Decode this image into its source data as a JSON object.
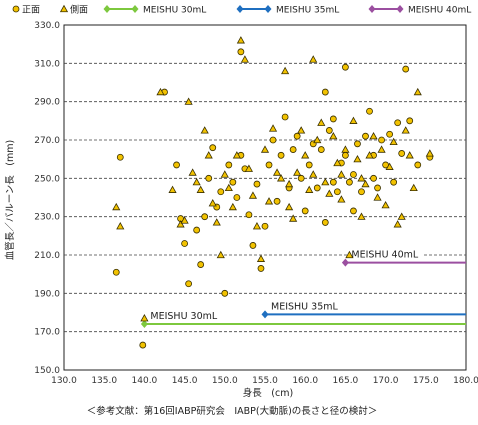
{
  "chart_data": {
    "type": "scatter",
    "xlabel": "身長　(cm)",
    "ylabel": "血管長／バルーン長　(mm)",
    "caption": "＜参考文献：第16回IABP研究会　IABP(大動脈)の長さと径の検討＞",
    "xlim": [
      130.0,
      180.0
    ],
    "ylim": [
      150.0,
      330.0
    ],
    "xticks": [
      "130.0",
      "135.0",
      "140.0",
      "145.0",
      "150.0",
      "155.0",
      "160.0",
      "165.0",
      "170.0",
      "175.0",
      "180.0"
    ],
    "yticks": [
      "150.0",
      "170.0",
      "190.0",
      "210.0",
      "230.0",
      "250.0",
      "270.0",
      "290.0",
      "310.0",
      "330.0"
    ],
    "grid": "horizontal dashed",
    "legend_position": "top",
    "colors": {
      "marker_fill": "#f2c200",
      "marker_stroke": "#3a3000",
      "meishu30": "#7dc83e",
      "meishu35": "#1f6fc0",
      "meishu40": "#9b4fa0"
    },
    "legend": [
      {
        "label": "正面",
        "marker": "circle"
      },
      {
        "label": "側面",
        "marker": "triangle"
      },
      {
        "label": "MEISHU 30mL",
        "marker": "line",
        "color_key": "meishu30"
      },
      {
        "label": "MEISHU 35mL",
        "marker": "line",
        "color_key": "meishu35"
      },
      {
        "label": "MEISHU 40mL",
        "marker": "line",
        "color_key": "meishu40"
      }
    ],
    "reference_lines": [
      {
        "label": "MEISHU 30mL",
        "x_start": 140.0,
        "x_end": 180.0,
        "y": 174,
        "color_key": "meishu30"
      },
      {
        "label": "MEISHU 35mL",
        "x_start": 155.0,
        "x_end": 180.0,
        "y": 179,
        "color_key": "meishu35"
      },
      {
        "label": "MEISHU 40mL",
        "x_start": 165.0,
        "x_end": 180.0,
        "y": 206,
        "color_key": "meishu40"
      }
    ],
    "series": [
      {
        "name": "正面",
        "marker": "circle",
        "points": [
          [
            136.5,
            201
          ],
          [
            137.0,
            261
          ],
          [
            139.8,
            163
          ],
          [
            142.5,
            295
          ],
          [
            144.0,
            257
          ],
          [
            144.5,
            229
          ],
          [
            145.0,
            216
          ],
          [
            145.5,
            195
          ],
          [
            146.5,
            223
          ],
          [
            147.0,
            205
          ],
          [
            147.5,
            230
          ],
          [
            148.0,
            250
          ],
          [
            148.5,
            266
          ],
          [
            149.0,
            235
          ],
          [
            149.5,
            243
          ],
          [
            150.0,
            190
          ],
          [
            150.5,
            257
          ],
          [
            151.0,
            248
          ],
          [
            151.5,
            240
          ],
          [
            152.0,
            262
          ],
          [
            152.0,
            316
          ],
          [
            152.5,
            255
          ],
          [
            153.0,
            231
          ],
          [
            153.5,
            215
          ],
          [
            154.0,
            247
          ],
          [
            154.5,
            203
          ],
          [
            155.0,
            225
          ],
          [
            155.5,
            257
          ],
          [
            156.0,
            270
          ],
          [
            156.5,
            238
          ],
          [
            157.0,
            262
          ],
          [
            157.5,
            282
          ],
          [
            158.0,
            245
          ],
          [
            158.5,
            265
          ],
          [
            159.0,
            272
          ],
          [
            159.5,
            250
          ],
          [
            160.0,
            233
          ],
          [
            160.5,
            257
          ],
          [
            161.0,
            268
          ],
          [
            161.5,
            245
          ],
          [
            162.0,
            265
          ],
          [
            162.5,
            295
          ],
          [
            162.5,
            227
          ],
          [
            163.0,
            275
          ],
          [
            163.5,
            248
          ],
          [
            164.0,
            243
          ],
          [
            164.5,
            258
          ],
          [
            165.0,
            308
          ],
          [
            165.0,
            262
          ],
          [
            165.5,
            248
          ],
          [
            166.0,
            233
          ],
          [
            166.5,
            268
          ],
          [
            167.0,
            243
          ],
          [
            167.5,
            272
          ],
          [
            168.0,
            285
          ],
          [
            168.5,
            262
          ],
          [
            169.0,
            245
          ],
          [
            169.5,
            270
          ],
          [
            170.0,
            257
          ],
          [
            170.5,
            273
          ],
          [
            171.0,
            248
          ],
          [
            171.5,
            279
          ],
          [
            172.0,
            263
          ],
          [
            172.5,
            307
          ],
          [
            173.0,
            280
          ],
          [
            174.0,
            257
          ],
          [
            175.5,
            261
          ],
          [
            163.5,
            281
          ],
          [
            166.0,
            252
          ],
          [
            168.5,
            250
          ]
        ]
      },
      {
        "name": "側面",
        "marker": "triangle",
        "points": [
          [
            136.5,
            235
          ],
          [
            137.0,
            225
          ],
          [
            140.0,
            177
          ],
          [
            142.0,
            295
          ],
          [
            143.5,
            244
          ],
          [
            144.5,
            226
          ],
          [
            145.0,
            228
          ],
          [
            145.5,
            290
          ],
          [
            146.0,
            253
          ],
          [
            146.5,
            248
          ],
          [
            147.0,
            244
          ],
          [
            147.5,
            275
          ],
          [
            148.0,
            262
          ],
          [
            148.5,
            237
          ],
          [
            149.0,
            227
          ],
          [
            149.5,
            210
          ],
          [
            150.0,
            252
          ],
          [
            150.5,
            245
          ],
          [
            151.0,
            235
          ],
          [
            151.5,
            262
          ],
          [
            152.0,
            322
          ],
          [
            152.5,
            312
          ],
          [
            153.0,
            255
          ],
          [
            153.5,
            241
          ],
          [
            154.0,
            225
          ],
          [
            154.5,
            208
          ],
          [
            155.0,
            265
          ],
          [
            155.5,
            238
          ],
          [
            156.0,
            276
          ],
          [
            156.5,
            253
          ],
          [
            157.0,
            250
          ],
          [
            157.5,
            306
          ],
          [
            158.0,
            247
          ],
          [
            158.5,
            229
          ],
          [
            159.0,
            253
          ],
          [
            159.5,
            275
          ],
          [
            160.0,
            262
          ],
          [
            160.5,
            244
          ],
          [
            161.0,
            252
          ],
          [
            161.5,
            270
          ],
          [
            162.0,
            279
          ],
          [
            162.5,
            248
          ],
          [
            163.0,
            242
          ],
          [
            163.5,
            272
          ],
          [
            164.0,
            258
          ],
          [
            164.5,
            239
          ],
          [
            165.0,
            265
          ],
          [
            165.5,
            210
          ],
          [
            166.0,
            280
          ],
          [
            166.5,
            260
          ],
          [
            167.0,
            250
          ],
          [
            167.5,
            247
          ],
          [
            168.0,
            262
          ],
          [
            168.5,
            272
          ],
          [
            169.0,
            240
          ],
          [
            169.5,
            265
          ],
          [
            170.0,
            236
          ],
          [
            170.5,
            256
          ],
          [
            171.0,
            269
          ],
          [
            171.5,
            226
          ],
          [
            172.0,
            230
          ],
          [
            172.5,
            275
          ],
          [
            173.0,
            262
          ],
          [
            173.5,
            245
          ],
          [
            174.0,
            295
          ],
          [
            175.5,
            263
          ],
          [
            161.0,
            312
          ],
          [
            164.5,
            252
          ],
          [
            167.0,
            230
          ],
          [
            158.0,
            235
          ]
        ]
      }
    ]
  }
}
